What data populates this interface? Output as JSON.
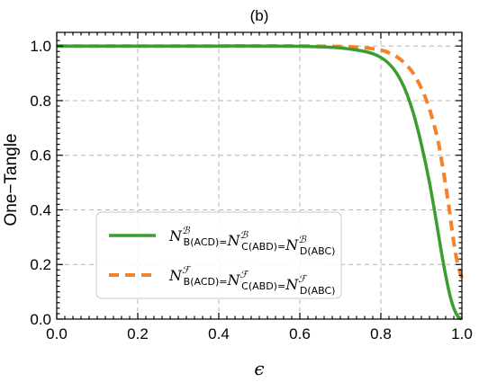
{
  "chart_data": {
    "type": "line",
    "title": "(b)",
    "xlabel": "ϵ",
    "ylabel": "One−Tangle",
    "xlim": [
      0,
      1
    ],
    "ylim": [
      0,
      1.05
    ],
    "grid": true,
    "legend_position": "bottom-left",
    "x_ticks": [
      "0.0",
      "0.2",
      "0.4",
      "0.6",
      "0.8",
      "1.0"
    ],
    "y_ticks": [
      "0.0",
      "0.2",
      "0.4",
      "0.6",
      "0.8",
      "1.0"
    ],
    "series": [
      {
        "legend": {
          "terms": [
            {
              "base": "N",
              "sup": "ℬ",
              "sub": "B(ACD)"
            },
            {
              "base": "N",
              "sup": "ℬ",
              "sub": "C(ABD)"
            },
            {
              "base": "N",
              "sup": "ℬ",
              "sub": "D(ABC)"
            }
          ]
        },
        "color": "#3a9e2f",
        "style": "solid",
        "x": [
          0.0,
          0.1,
          0.2,
          0.3,
          0.4,
          0.5,
          0.6,
          0.65,
          0.7,
          0.75,
          0.78,
          0.8,
          0.82,
          0.84,
          0.86,
          0.88,
          0.9,
          0.92,
          0.94,
          0.95,
          0.96,
          0.97,
          0.98,
          0.99,
          1.0
        ],
        "y": [
          1.0,
          1.0,
          1.0,
          1.0,
          1.0,
          1.0,
          0.999,
          0.997,
          0.993,
          0.983,
          0.972,
          0.958,
          0.935,
          0.898,
          0.84,
          0.755,
          0.64,
          0.5,
          0.33,
          0.24,
          0.16,
          0.09,
          0.04,
          0.01,
          0.0
        ]
      },
      {
        "legend": {
          "terms": [
            {
              "base": "N",
              "sup": "ℱ",
              "sub": "B(ACD)"
            },
            {
              "base": "N",
              "sup": "ℱ",
              "sub": "C(ABD)"
            },
            {
              "base": "N",
              "sup": "ℱ",
              "sub": "D(ABC)"
            }
          ]
        },
        "color": "#f5822a",
        "style": "dashed",
        "x": [
          0.0,
          0.2,
          0.4,
          0.6,
          0.7,
          0.75,
          0.8,
          0.82,
          0.84,
          0.86,
          0.88,
          0.9,
          0.92,
          0.94,
          0.95,
          0.96,
          0.97,
          0.98,
          0.99,
          1.0
        ],
        "y": [
          1.0,
          1.0,
          1.0,
          1.0,
          0.998,
          0.995,
          0.985,
          0.975,
          0.96,
          0.935,
          0.9,
          0.845,
          0.77,
          0.66,
          0.58,
          0.49,
          0.39,
          0.28,
          0.2,
          0.15
        ]
      }
    ]
  }
}
